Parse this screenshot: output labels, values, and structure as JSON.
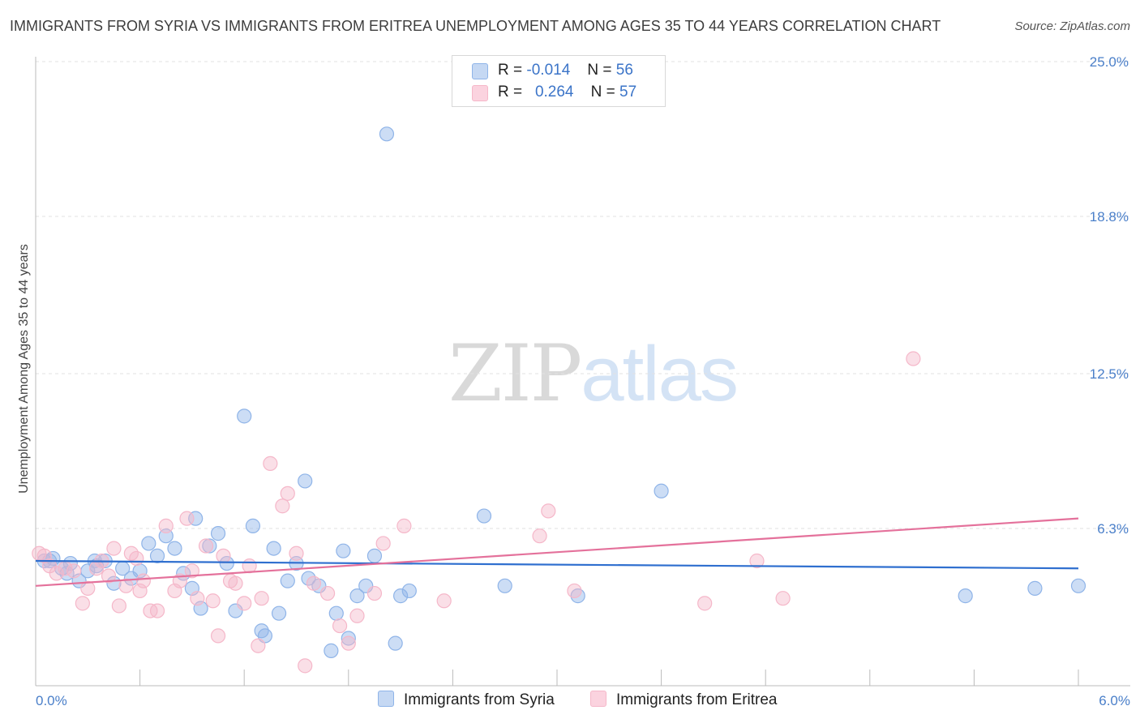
{
  "chart_data": {
    "type": "scatter",
    "title": "IMMIGRANTS FROM SYRIA VS IMMIGRANTS FROM ERITREA UNEMPLOYMENT AMONG AGES 35 TO 44 YEARS CORRELATION CHART",
    "source": "Source: ZipAtlas.com",
    "ylabel": "Unemployment Among Ages 35 to 44 years",
    "xlim": [
      0,
      6.0
    ],
    "ylim": [
      0,
      25.0
    ],
    "x_tick_labels": [
      "0.0%",
      "6.0%"
    ],
    "y_ticks": [
      6.3,
      12.5,
      18.8,
      25.0
    ],
    "y_tick_labels": [
      "6.3%",
      "12.5%",
      "18.8%",
      "25.0%"
    ],
    "grid": true,
    "legend_position": "top-center",
    "watermark": {
      "zip": "ZIP",
      "atlas": "atlas"
    },
    "series": [
      {
        "name": "Immigrants from Syria",
        "color": "#8fb4e8",
        "line_color": "#2f6fcf",
        "r_label": "R =",
        "r_value": "-0.014",
        "n_label": "N =",
        "n_value": "56",
        "trend": [
          [
            0,
            5.0
          ],
          [
            6.0,
            4.7
          ]
        ],
        "points": [
          [
            0.05,
            5.0
          ],
          [
            0.1,
            5.1
          ],
          [
            0.15,
            4.7
          ],
          [
            0.2,
            4.9
          ],
          [
            0.25,
            4.2
          ],
          [
            0.3,
            4.6
          ],
          [
            0.35,
            4.8
          ],
          [
            0.4,
            5.0
          ],
          [
            0.45,
            4.1
          ],
          [
            0.5,
            4.7
          ],
          [
            0.55,
            4.3
          ],
          [
            0.6,
            4.6
          ],
          [
            0.65,
            5.7
          ],
          [
            0.7,
            5.2
          ],
          [
            0.75,
            6.0
          ],
          [
            0.8,
            5.5
          ],
          [
            0.85,
            4.5
          ],
          [
            0.9,
            3.9
          ],
          [
            0.92,
            6.7
          ],
          [
            0.95,
            3.1
          ],
          [
            1.0,
            5.6
          ],
          [
            1.05,
            6.1
          ],
          [
            1.1,
            4.9
          ],
          [
            1.15,
            3.0
          ],
          [
            1.2,
            10.8
          ],
          [
            1.25,
            6.4
          ],
          [
            1.3,
            2.2
          ],
          [
            1.32,
            2.0
          ],
          [
            1.37,
            5.5
          ],
          [
            1.4,
            2.9
          ],
          [
            1.45,
            4.2
          ],
          [
            1.5,
            4.9
          ],
          [
            1.55,
            8.2
          ],
          [
            1.57,
            4.3
          ],
          [
            1.63,
            4.0
          ],
          [
            1.7,
            1.4
          ],
          [
            1.73,
            2.9
          ],
          [
            1.77,
            5.4
          ],
          [
            1.8,
            1.9
          ],
          [
            1.85,
            3.6
          ],
          [
            1.9,
            4.0
          ],
          [
            1.95,
            5.2
          ],
          [
            2.02,
            22.1
          ],
          [
            2.07,
            1.7
          ],
          [
            2.1,
            3.6
          ],
          [
            2.15,
            3.8
          ],
          [
            2.58,
            6.8
          ],
          [
            2.7,
            4.0
          ],
          [
            3.12,
            3.6
          ],
          [
            3.6,
            7.8
          ],
          [
            5.35,
            3.6
          ],
          [
            5.75,
            3.9
          ],
          [
            6.0,
            4.0
          ],
          [
            0.08,
            5.0
          ],
          [
            0.18,
            4.5
          ],
          [
            0.34,
            5.0
          ]
        ]
      },
      {
        "name": "Immigrants from Eritrea",
        "color": "#f5b7c9",
        "line_color": "#e4719b",
        "r_label": "R =",
        "r_value": "0.264",
        "n_label": "N =",
        "n_value": "57",
        "trend": [
          [
            0,
            4.0
          ],
          [
            6.0,
            6.7
          ]
        ],
        "points": [
          [
            0.05,
            5.2
          ],
          [
            0.08,
            4.8
          ],
          [
            0.12,
            4.5
          ],
          [
            0.17,
            4.7
          ],
          [
            0.22,
            4.6
          ],
          [
            0.27,
            3.3
          ],
          [
            0.3,
            3.9
          ],
          [
            0.35,
            4.7
          ],
          [
            0.38,
            5.0
          ],
          [
            0.42,
            4.4
          ],
          [
            0.45,
            5.5
          ],
          [
            0.48,
            3.2
          ],
          [
            0.52,
            4.0
          ],
          [
            0.55,
            5.3
          ],
          [
            0.58,
            5.1
          ],
          [
            0.62,
            4.2
          ],
          [
            0.66,
            3.0
          ],
          [
            0.7,
            3.0
          ],
          [
            0.75,
            6.4
          ],
          [
            0.8,
            3.8
          ],
          [
            0.83,
            4.2
          ],
          [
            0.87,
            6.7
          ],
          [
            0.9,
            4.6
          ],
          [
            0.93,
            3.5
          ],
          [
            0.98,
            5.6
          ],
          [
            1.02,
            3.4
          ],
          [
            1.05,
            2.0
          ],
          [
            1.08,
            5.2
          ],
          [
            1.12,
            4.2
          ],
          [
            1.15,
            4.1
          ],
          [
            1.2,
            3.3
          ],
          [
            1.23,
            4.8
          ],
          [
            1.28,
            1.6
          ],
          [
            1.3,
            3.5
          ],
          [
            1.35,
            8.9
          ],
          [
            1.42,
            7.2
          ],
          [
            1.45,
            7.7
          ],
          [
            1.5,
            5.3
          ],
          [
            1.55,
            0.8
          ],
          [
            1.6,
            4.1
          ],
          [
            1.68,
            3.7
          ],
          [
            1.75,
            2.4
          ],
          [
            1.8,
            1.7
          ],
          [
            1.85,
            2.8
          ],
          [
            1.95,
            3.7
          ],
          [
            2.0,
            5.7
          ],
          [
            2.12,
            6.4
          ],
          [
            2.35,
            3.4
          ],
          [
            2.9,
            6.0
          ],
          [
            2.95,
            7.0
          ],
          [
            3.1,
            3.8
          ],
          [
            3.85,
            3.3
          ],
          [
            4.15,
            5.0
          ],
          [
            4.3,
            3.5
          ],
          [
            5.05,
            13.1
          ],
          [
            0.02,
            5.3
          ],
          [
            0.6,
            3.8
          ]
        ]
      }
    ]
  }
}
